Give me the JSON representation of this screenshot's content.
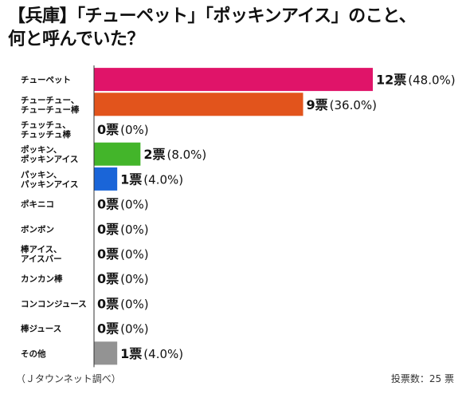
{
  "title_line1": "【兵庫】「チューペット」「ポッキンアイス」のこと、",
  "title_line2": "何と呼んでいた？",
  "source": "（Ｊタウンネット調べ）",
  "total_votes": "投票数：25 票",
  "count_suffix": "票",
  "chart_data": {
    "type": "bar",
    "orientation": "horizontal",
    "title": "【兵庫】「チューペット」「ポッキンアイス」のこと、何と呼んでいた？",
    "categories": [
      [
        "チューペット"
      ],
      [
        "チューチュー、",
        "チューチュー棒"
      ],
      [
        "チュッチュ、",
        "チュッチュ棒"
      ],
      [
        "ポッキン、",
        "ポッキンアイス"
      ],
      [
        "パッキン、",
        "パッキンアイス"
      ],
      [
        "ポキニコ"
      ],
      [
        "ボンボン"
      ],
      [
        "棒アイス、",
        "アイスバー"
      ],
      [
        "カンカン棒"
      ],
      [
        "コンコンジュース"
      ],
      [
        "棒ジュース"
      ],
      [
        "その他"
      ]
    ],
    "values": [
      12,
      9,
      0,
      2,
      1,
      0,
      0,
      0,
      0,
      0,
      0,
      1
    ],
    "percent_labels": [
      "(48.0%)",
      "(36.0%)",
      "(0%)",
      "(8.0%)",
      "(4.0%)",
      "(0%)",
      "(0%)",
      "(0%)",
      "(0%)",
      "(0%)",
      "(0%)",
      "(4.0%)"
    ],
    "colors": [
      "#e01469",
      "#e2541c",
      "#cccccc",
      "#43b52a",
      "#1a65d8",
      "#cccccc",
      "#cccccc",
      "#cccccc",
      "#cccccc",
      "#cccccc",
      "#cccccc",
      "#939393"
    ],
    "xlim": [
      0,
      12
    ]
  }
}
